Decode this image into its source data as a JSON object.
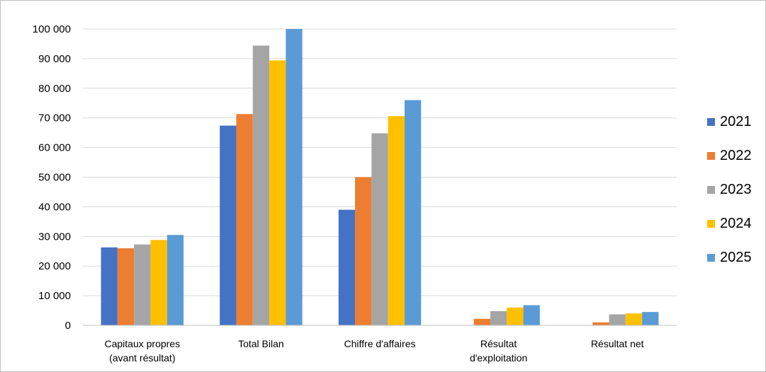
{
  "chart_data": {
    "type": "bar",
    "title": "",
    "xlabel": "",
    "ylabel": "",
    "categories": [
      [
        "Capitaux propres",
        "(avant résultat)"
      ],
      [
        "Total Bilan"
      ],
      [
        "Chiffre d'affaires"
      ],
      [
        "Résultat",
        "d'exploitation"
      ],
      [
        "Résultat net"
      ]
    ],
    "series": [
      {
        "name": "2021",
        "color": "#4472C4",
        "values": [
          26300,
          67400,
          39000,
          0,
          0
        ]
      },
      {
        "name": "2022",
        "color": "#ED7D31",
        "values": [
          26000,
          71300,
          50000,
          2200,
          1000
        ]
      },
      {
        "name": "2023",
        "color": "#A5A5A5",
        "values": [
          27300,
          94400,
          64800,
          4800,
          3700
        ]
      },
      {
        "name": "2024",
        "color": "#FFC000",
        "values": [
          28800,
          89400,
          70600,
          6000,
          4000
        ]
      },
      {
        "name": "2025",
        "color": "#5B9BD5",
        "values": [
          30500,
          100000,
          76000,
          6800,
          4500
        ]
      }
    ],
    "ylim": [
      0,
      100000
    ],
    "yticks": [
      0,
      10000,
      20000,
      30000,
      40000,
      50000,
      60000,
      70000,
      80000,
      90000,
      100000
    ],
    "ytick_labels": [
      "0",
      "10 000",
      "20 000",
      "30 000",
      "40 000",
      "50 000",
      "60 000",
      "70 000",
      "80 000",
      "90 000",
      "100 000"
    ],
    "grid": true,
    "legend": "right"
  }
}
